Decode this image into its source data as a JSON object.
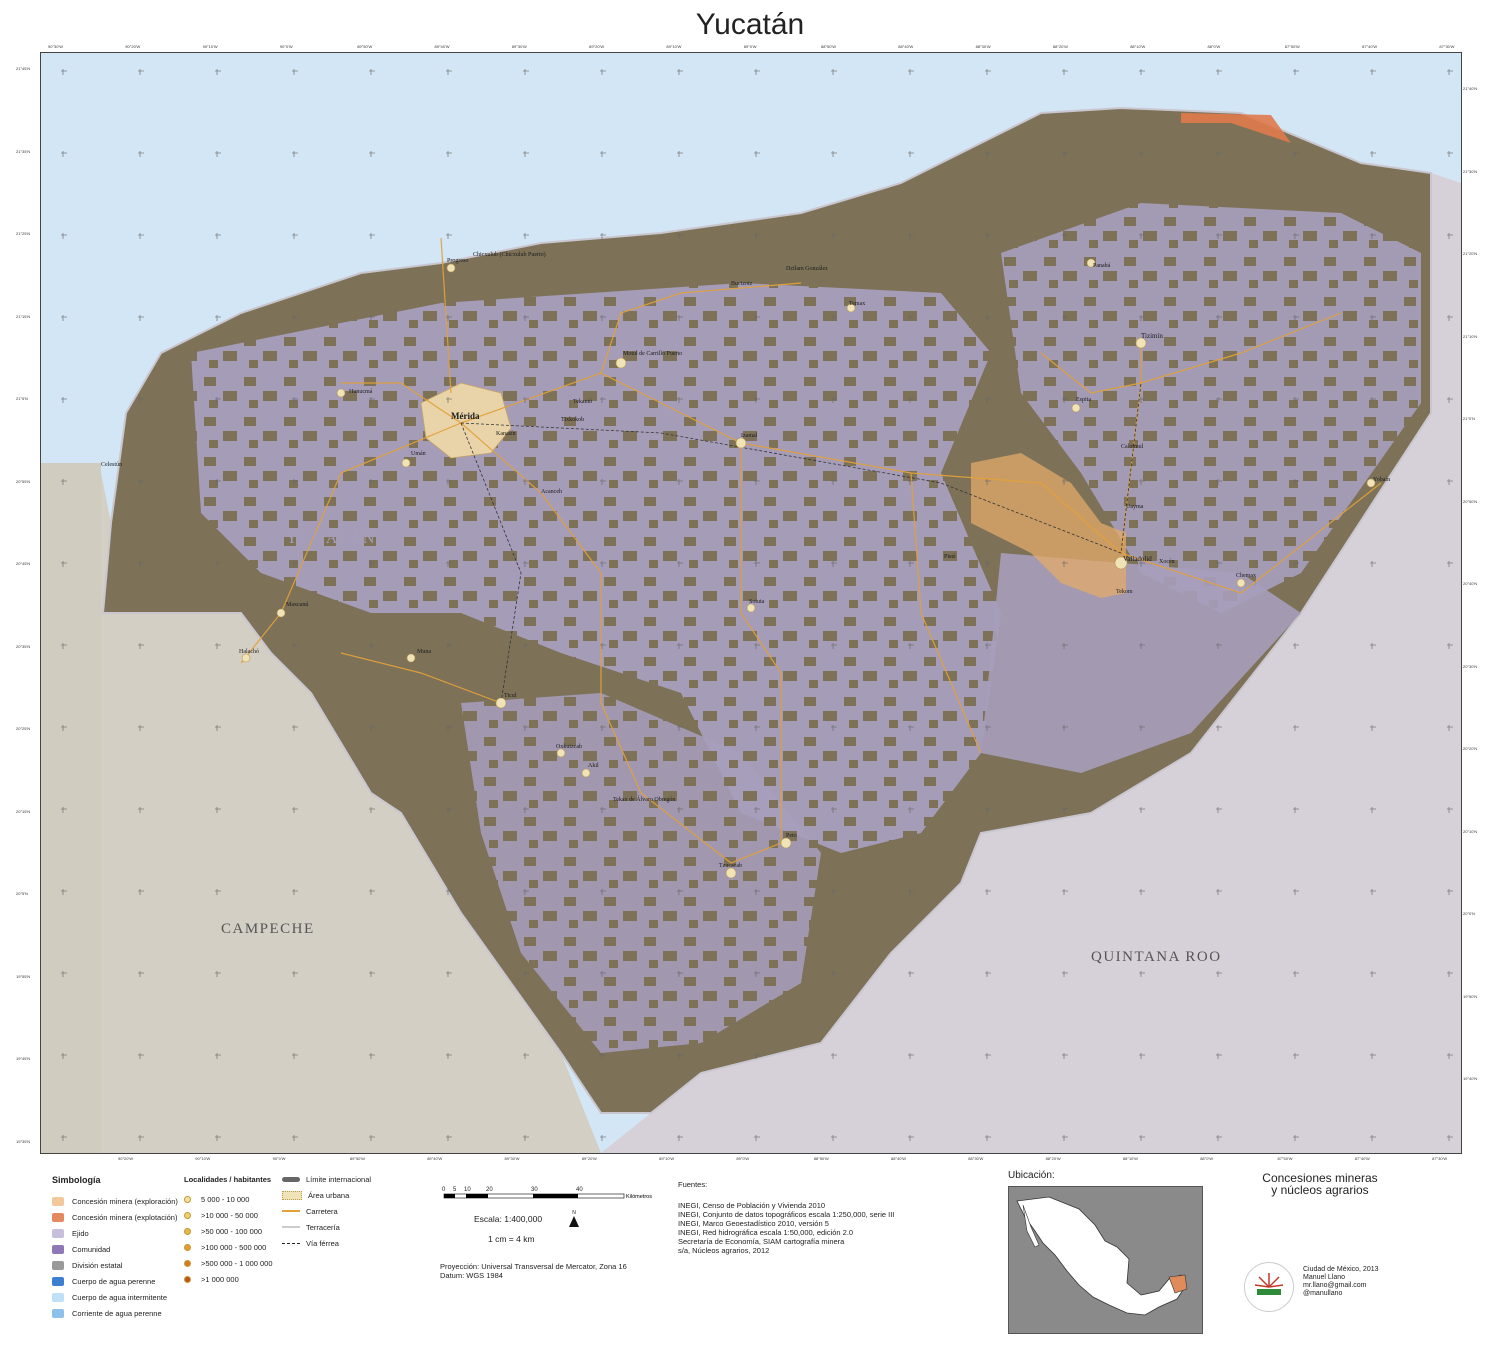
{
  "title": "Yucatán",
  "axis_top": [
    "90°30'W",
    "90°20'W",
    "90°10'W",
    "90°0'W",
    "89°50'W",
    "89°40'W",
    "89°30'W",
    "89°20'W",
    "89°10'W",
    "89°0'W",
    "88°50'W",
    "88°40'W",
    "88°30'W",
    "88°20'W",
    "88°10'W",
    "88°0'W",
    "87°50'W",
    "87°40'W",
    "87°30'W"
  ],
  "axis_bottom": [
    "90°20'W",
    "90°10'W",
    "90°0'W",
    "89°50'W",
    "89°40'W",
    "89°30'W",
    "89°20'W",
    "89°10'W",
    "89°0'W",
    "88°50'W",
    "88°40'W",
    "88°30'W",
    "88°20'W",
    "88°10'W",
    "88°0'W",
    "87°50'W",
    "87°40'W",
    "87°30'W"
  ],
  "axis_left": [
    "21°45'N",
    "21°35'N",
    "21°25'N",
    "21°15'N",
    "21°5'N",
    "20°55'N",
    "20°45'N",
    "20°35'N",
    "20°25'N",
    "20°15'N",
    "20°5'N",
    "19°55'N",
    "19°45'N",
    "19°35'N"
  ],
  "axis_right": [
    "21°40'N",
    "21°30'N",
    "21°20'N",
    "21°10'N",
    "21°0'N",
    "20°50'N",
    "20°40'N",
    "20°30'N",
    "20°20'N",
    "20°10'N",
    "20°0'N",
    "19°50'N",
    "19°40'N"
  ],
  "regions": {
    "yucatan": "YUCATÁN",
    "campeche": "CAMPECHE",
    "quintana_roo": "QUINTANA ROO"
  },
  "places": {
    "merida": "Mérida",
    "progreso": "Progreso",
    "chicxulub": "Chicxulub (Chicxulub Puerto)",
    "celestun": "Celestún",
    "hunucma": "Hunucmá",
    "uman": "Umán",
    "kanasin": "Kanasín",
    "motul": "Motul de Carrillo Puerto",
    "tekanto": "Tekantó",
    "izamal": "Izamal",
    "acanceh": "Acanceh",
    "maxcanu": "Maxcanú",
    "halacho": "Halachó",
    "muna": "Muna",
    "ticul": "Ticul",
    "oxkutzcab": "Oxkutzcab",
    "akil": "Akil",
    "tekax": "Tekax de Álvaro Obregón",
    "peto": "Peto",
    "tzucacab": "Tzucacab",
    "sotuta": "Sotuta",
    "tixkokob": "Tixkokob",
    "dzilam": "Dzilam González",
    "temax": "Temax",
    "buctzotz": "Buctzotz",
    "panaba": "Panabá",
    "tizimin": "Tizimín",
    "espita": "Espita",
    "valladolid": "Valladolid",
    "chemax": "Chemax",
    "uayma": "Uayma",
    "piste": "Pisté",
    "tekom": "Tekom",
    "calotmul": "Calotmul",
    "xocen": "Xocén",
    "yobain": "Yobaín"
  },
  "legend": {
    "title": "Simbología",
    "items": [
      {
        "label": "Concesión minera (exploración)",
        "color": "#f3c89a"
      },
      {
        "label": "Concesión minera (explotación)",
        "color": "#e48a5e"
      },
      {
        "label": "Ejido",
        "color": "#c8bfdc"
      },
      {
        "label": "Comunidad",
        "color": "#8f78b7"
      },
      {
        "label": "División estatal",
        "color": "#9a9a9a"
      },
      {
        "label": "Cuerpo de agua perenne",
        "color": "#3d7fd0"
      },
      {
        "label": "Cuerpo de agua intermitente",
        "color": "#bfe1f7"
      },
      {
        "label": "Corriente de agua perenne",
        "color": "#8cc2ea"
      }
    ],
    "pop_title": "Localidades / habitantes",
    "pop_items": [
      "5 000 - 10 000",
      ">10 000 - 50 000",
      ">50 000 - 100 000",
      ">100 000 - 500 000",
      ">500 000 - 1 000 000",
      ">1 000 000"
    ],
    "line_items": [
      "Límite internacional",
      "Área urbana",
      "Carretera",
      "Terracería",
      "Vía férrea"
    ]
  },
  "scale": {
    "ticks": [
      "0",
      "5",
      "10",
      "20",
      "30",
      "40"
    ],
    "unit": "Kilómetros",
    "ratio": "Escala: 1:400,000",
    "equiv": "1 cm = 4 km",
    "north": "N",
    "projection": "Proyección: Universal Transversal de Mercator, Zona 16",
    "datum": "Datum: WGS 1984"
  },
  "sources": {
    "title": "Fuentes:",
    "lines": [
      "INEGI, Censo de Población y Vivienda 2010",
      "INEGI, Conjunto de datos topográficos escala 1:250,000, serie III",
      "INEGI, Marco Geoestadístico 2010, versión 5",
      "INEGI, Red hidrográfica escala 1:50,000, edición 2.0",
      "Secretaría de Economía, SIAM cartografía minera",
      "s/a, Núcleos agrarios, 2012"
    ]
  },
  "location_label": "Ubicación:",
  "map_subject": [
    "Concesiones mineras",
    "y núcleos agrarios"
  ],
  "credits": [
    "Ciudad de México, 2013",
    "Manuel Llano",
    "mr.llano@gmail.com",
    "@manullano"
  ],
  "colors": {
    "sea": "#d3e6f5",
    "land_other": "#d6d2c8",
    "state_brown": "#7d7258",
    "ejido": "#a79ebd",
    "mining": "#e3a969",
    "roads": "#e2a13a"
  }
}
